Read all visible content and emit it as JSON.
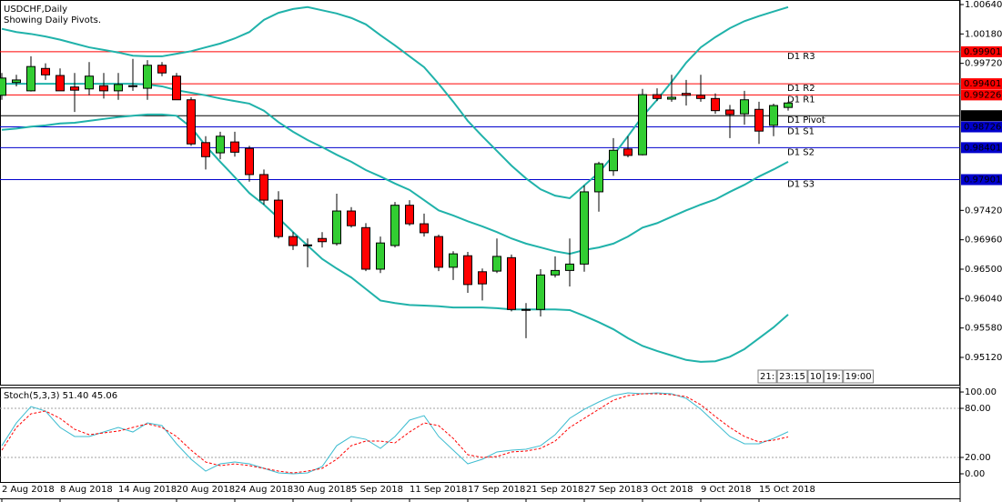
{
  "chart_data": {
    "type": "candlestick",
    "title": "USDCHF,Daily",
    "subtitle": "Showing Daily Pivots.",
    "categories": [
      "2 Aug 2018",
      null,
      null,
      null,
      "8 Aug 2018",
      null,
      null,
      null,
      "14 Aug 2018",
      null,
      null,
      null,
      "20 Aug 2018",
      null,
      null,
      null,
      "24 Aug 2018",
      null,
      null,
      null,
      "30 Aug 2018",
      null,
      null,
      null,
      "5 Sep 2018",
      null,
      null,
      null,
      "11 Sep 2018",
      null,
      null,
      null,
      "17 Sep 2018",
      null,
      null,
      null,
      "21 Sep 2018",
      null,
      null,
      null,
      "27 Sep 2018",
      null,
      null,
      null,
      "3 Oct 2018",
      null,
      null,
      null,
      "9 Oct 2018",
      null,
      null,
      null,
      "15 Oct 2018",
      null,
      null
    ],
    "open": [
      0.9922,
      0.9942,
      0.9929,
      0.9964,
      0.9953,
      0.9935,
      0.9932,
      0.9937,
      0.9929,
      0.9936,
      0.9933,
      0.9969,
      0.9952,
      0.9915,
      0.9848,
      0.9832,
      0.9849,
      0.9839,
      0.9798,
      0.9758,
      0.9701,
      0.9687,
      0.9698,
      0.969,
      0.9741,
      0.9715,
      0.965,
      0.9687,
      0.975,
      0.9721,
      0.9701,
      0.9653,
      0.9671,
      0.9646,
      0.9647,
      0.9668,
      0.9586,
      0.9587,
      0.9641,
      0.9648,
      0.9658,
      0.9771,
      0.9804,
      0.9838,
      0.9829,
      0.9923,
      0.9916,
      0.9925,
      0.9922,
      0.9917,
      0.9899,
      0.9893,
      0.99,
      0.9875,
      0.9903
    ],
    "high": [
      0.9957,
      0.9954,
      0.9983,
      0.9972,
      0.9964,
      0.9957,
      0.9974,
      0.9957,
      0.9957,
      0.9979,
      0.9977,
      0.9974,
      0.9957,
      0.9919,
      0.9858,
      0.9865,
      0.9865,
      0.9843,
      0.9806,
      0.9772,
      0.9708,
      0.9698,
      0.9708,
      0.9768,
      0.9747,
      0.9722,
      0.9701,
      0.9755,
      0.9758,
      0.9737,
      0.9704,
      0.9678,
      0.9677,
      0.9651,
      0.9698,
      0.9673,
      0.9597,
      0.965,
      0.967,
      0.9698,
      0.9781,
      0.9818,
      0.9855,
      0.9858,
      0.9932,
      0.9933,
      0.9954,
      0.9946,
      0.9954,
      0.9925,
      0.9907,
      0.9929,
      0.9912,
      0.9909,
      0.9912
    ],
    "low": [
      0.9915,
      0.9936,
      0.9928,
      0.9946,
      0.9929,
      0.9896,
      0.9922,
      0.9917,
      0.9915,
      0.9929,
      0.9915,
      0.9952,
      0.9915,
      0.9843,
      0.9806,
      0.9822,
      0.9826,
      0.9787,
      0.9751,
      0.9698,
      0.968,
      0.9653,
      0.9684,
      0.9687,
      0.9715,
      0.9647,
      0.9644,
      0.9684,
      0.9718,
      0.9701,
      0.9647,
      0.9633,
      0.9613,
      0.9601,
      0.9644,
      0.9584,
      0.9542,
      0.9576,
      0.9637,
      0.9623,
      0.9646,
      0.974,
      0.9796,
      0.9825,
      0.9828,
      0.9913,
      0.9912,
      0.9906,
      0.9912,
      0.9893,
      0.9855,
      0.9876,
      0.9846,
      0.9858,
      0.9898
    ],
    "close": [
      0.9949,
      0.9946,
      0.9967,
      0.9954,
      0.9929,
      0.993,
      0.9952,
      0.9929,
      0.9939,
      0.9937,
      0.9969,
      0.9957,
      0.9915,
      0.9846,
      0.9826,
      0.9858,
      0.9833,
      0.9798,
      0.9758,
      0.9701,
      0.9687,
      0.9688,
      0.9693,
      0.9741,
      0.9718,
      0.965,
      0.9691,
      0.975,
      0.9721,
      0.9707,
      0.9653,
      0.9674,
      0.9626,
      0.9627,
      0.967,
      0.9587,
      0.9587,
      0.9641,
      0.9648,
      0.9658,
      0.9771,
      0.9815,
      0.9836,
      0.9828,
      0.9923,
      0.9917,
      0.9919,
      0.9922,
      0.9917,
      0.9898,
      0.9892,
      0.9915,
      0.9866,
      0.9906,
      0.991
    ],
    "up_color": "#32cd32",
    "down_color": "#ff0000",
    "ylim": [
      0.94693,
      1.00711
    ],
    "yticks": [
      {
        "value": 1.0064,
        "label": "1.00640"
      },
      {
        "value": 1.0018,
        "label": "1.00180"
      },
      {
        "value": 0.9972,
        "label": "0.99720"
      },
      {
        "value": 0.9742,
        "label": "0.97420"
      },
      {
        "value": 0.9696,
        "label": "0.96960"
      },
      {
        "value": 0.965,
        "label": "0.96500"
      },
      {
        "value": 0.9604,
        "label": "0.96040"
      },
      {
        "value": 0.9558,
        "label": "0.95580"
      },
      {
        "value": 0.9512,
        "label": "0.95120"
      }
    ],
    "bands": {
      "color": "#20b2aa",
      "series": [
        {
          "values": [
            1.0026,
            1.0021,
            1.0018,
            1.0014,
            1.0009,
            1.0003,
            0.9997,
            0.9993,
            0.9989,
            0.9984,
            0.9983,
            0.9983,
            0.9987,
            0.9991,
            0.9997,
            1.0003,
            1.0011,
            1.0021,
            1.004,
            1.0051,
            1.0057,
            1.006,
            1.0055,
            1.005,
            1.0043,
            1.0033,
            1.0016,
            1.0,
            0.9983,
            0.9966,
            0.994,
            0.9912,
            0.9882,
            0.9858,
            0.9835,
            0.9812,
            0.9792,
            0.9775,
            0.9765,
            0.9761,
            0.9781,
            0.9801,
            0.9828,
            0.9858,
            0.9889,
            0.9915,
            0.9943,
            0.9973,
            0.9997,
            1.0013,
            1.0027,
            1.0038,
            1.0046,
            1.0053,
            1.006
          ]
        },
        {
          "values": [
            0.994,
            0.994,
            0.994,
            0.994,
            0.994,
            0.994,
            0.994,
            0.994,
            0.994,
            0.994,
            0.9939,
            0.9936,
            0.993,
            0.9926,
            0.9922,
            0.9917,
            0.9913,
            0.9909,
            0.9898,
            0.988,
            0.9865,
            0.9852,
            0.9841,
            0.9829,
            0.9818,
            0.9805,
            0.9795,
            0.9784,
            0.9774,
            0.9758,
            0.9742,
            0.9734,
            0.9725,
            0.9717,
            0.9708,
            0.9698,
            0.969,
            0.9684,
            0.9678,
            0.9674,
            0.968,
            0.9684,
            0.969,
            0.9701,
            0.9715,
            0.9722,
            0.9732,
            0.9742,
            0.9751,
            0.9759,
            0.9771,
            0.9782,
            0.9795,
            0.9806,
            0.9818
          ]
        },
        {
          "values": [
            0.9868,
            0.987,
            0.9873,
            0.9875,
            0.9878,
            0.9879,
            0.9882,
            0.9885,
            0.9888,
            0.989,
            0.9892,
            0.9892,
            0.989,
            0.9872,
            0.9843,
            0.9818,
            0.9794,
            0.9769,
            0.9751,
            0.973,
            0.9708,
            0.9687,
            0.9666,
            0.9651,
            0.9637,
            0.9619,
            0.9601,
            0.9597,
            0.9594,
            0.9593,
            0.9592,
            0.959,
            0.959,
            0.959,
            0.9589,
            0.9587,
            0.9587,
            0.9587,
            0.9587,
            0.9586,
            0.9577,
            0.9567,
            0.9556,
            0.9542,
            0.953,
            0.9522,
            0.9515,
            0.9508,
            0.9505,
            0.9506,
            0.9513,
            0.9525,
            0.9542,
            0.9559,
            0.9579
          ]
        }
      ]
    },
    "pivots": [
      {
        "name": "D1 R3",
        "value": 0.99901,
        "color": "#ff0000"
      },
      {
        "name": "D1 R2",
        "value": 0.99401,
        "color": "#ff0000"
      },
      {
        "name": "D1 R1",
        "value": 0.99226,
        "color": "#ff0000"
      },
      {
        "name": "D1 Pivot",
        "value": 0.98901,
        "color": "#000000"
      },
      {
        "name": "D1 S1",
        "value": 0.98726,
        "color": "#0000cd"
      },
      {
        "name": "D1 S2",
        "value": 0.98401,
        "color": "#0000cd"
      },
      {
        "name": "D1 S3",
        "value": 0.97901,
        "color": "#0000cd"
      }
    ],
    "timer": [
      "21:",
      "23:15",
      "10",
      "19:",
      "19:00"
    ],
    "stochastic": {
      "title": "Stoch(5,3,3)",
      "current_labels": [
        "51.40",
        "45.06"
      ],
      "ylim": [
        -10,
        105.6
      ],
      "yticks": [
        {
          "value": 100,
          "label": "100.00"
        },
        {
          "value": 80,
          "label": "80.00"
        },
        {
          "value": 20,
          "label": "20.00"
        },
        {
          "value": 0,
          "label": "0.00"
        }
      ],
      "levels": [
        80,
        20
      ],
      "series": [
        {
          "color": "#3cbcd0",
          "values": [
            34.4,
            62.2,
            82.2,
            76.7,
            56.7,
            45.6,
            45.6,
            51.1,
            56.7,
            51.1,
            62.2,
            58.9,
            36.7,
            17.8,
            3.3,
            12.2,
            14.4,
            12.2,
            6.7,
            1.1,
            0,
            1.1,
            8.9,
            34.4,
            45.6,
            42.2,
            31.1,
            45.6,
            65.6,
            71.1,
            45.6,
            28.9,
            12.2,
            17.8,
            26.7,
            28.9,
            30.0,
            34.4,
            47.8,
            67.8,
            78.9,
            87.8,
            95.6,
            98.9,
            97.8,
            98.9,
            97.8,
            92.2,
            78.9,
            62.2,
            45.6,
            36.7,
            36.7,
            43.3,
            51.4
          ]
        },
        {
          "color": "#ff0000",
          "dashed": true,
          "values": [
            28.9,
            56.7,
            73.3,
            76.7,
            67.8,
            54.4,
            47.8,
            50.0,
            52.2,
            56.7,
            61.1,
            56.7,
            45.6,
            28.9,
            14.4,
            10.0,
            12.2,
            10.0,
            6.7,
            3.3,
            1.1,
            3.3,
            6.7,
            17.8,
            34.4,
            40.0,
            40.0,
            37.8,
            51.1,
            62.2,
            58.9,
            43.3,
            23.3,
            20.0,
            21.1,
            26.7,
            27.8,
            31.1,
            40.0,
            56.7,
            67.8,
            78.9,
            90.0,
            95.6,
            97.8,
            97.8,
            96.7,
            94.4,
            84.4,
            70.0,
            56.7,
            45.6,
            38.9,
            41.1,
            45.06
          ]
        }
      ]
    }
  }
}
